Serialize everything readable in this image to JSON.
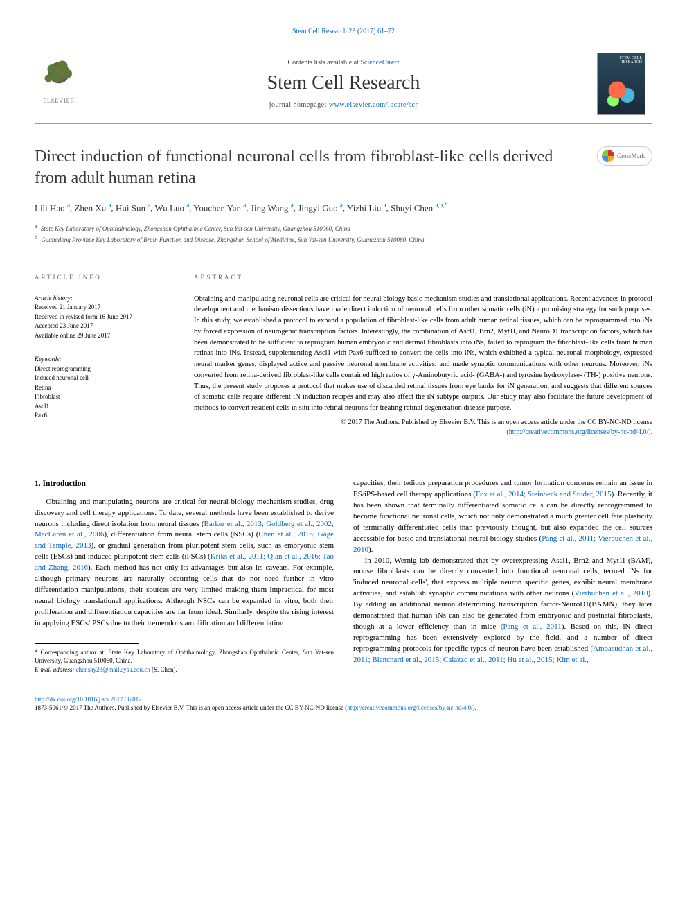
{
  "top_citation": "Stem Cell Research 23 (2017) 61–72",
  "header": {
    "contents_pre": "Contents lists available at ",
    "contents_link": "ScienceDirect",
    "journal": "Stem Cell Research",
    "homepage_pre": "journal homepage: ",
    "homepage_url": "www.elsevier.com/locate/scr",
    "publisher": "ELSEVIER",
    "cover_label": "STEM CELL RESEARCH"
  },
  "crossmark": "CrossMark",
  "title": "Direct induction of functional neuronal cells from fibroblast-like cells derived from adult human retina",
  "authors_html": "Lili Hao <sup>a</sup>, Zhen Xu <sup>a</sup>, Hui Sun <sup>a</sup>, Wu Luo <sup>a</sup>, Youchen Yan <sup>a</sup>, Jing Wang <sup>a</sup>, Jingyi Guo <sup>a</sup>, Yizhi Liu <sup>a</sup>, Shuyi Chen <sup>a,b,*</sup>",
  "affiliations": {
    "a": "State Key Laboratory of Ophthalmology, Zhongshan Ophthalmic Center, Sun Yat-sen University, Guangzhou 510060, China",
    "b": "Guangdong Province Key Laboratory of Brain Function and Disease, Zhongshan School of Medicine, Sun Yat-sen University, Guangzhou 510080, China"
  },
  "article_info": {
    "heading": "ARTICLE INFO",
    "history_label": "Article history:",
    "received": "Received 21 January 2017",
    "revised": "Received in revised form 16 June 2017",
    "accepted": "Accepted 23 June 2017",
    "online": "Available online 29 June 2017",
    "keywords_label": "Keywords:",
    "keywords": [
      "Direct reprogramming",
      "Induced neuronal cell",
      "Retina",
      "Fibroblast",
      "Ascl1",
      "Pax6"
    ]
  },
  "abstract": {
    "heading": "ABSTRACT",
    "text": "Obtaining and manipulating neuronal cells are critical for neural biology basic mechanism studies and translational applications. Recent advances in protocol development and mechanism dissections have made direct induction of neuronal cells from other somatic cells (iN) a promising strategy for such purposes. In this study, we established a protocol to expand a population of fibroblast-like cells from adult human retinal tissues, which can be reprogrammed into iNs by forced expression of neurogenic transcription factors. Interestingly, the combination of Ascl1, Brn2, Myt1l, and NeuroD1 transcription factors, which has been demonstrated to be sufficient to reprogram human embryonic and dermal fibroblasts into iNs, failed to reprogram the fibroblast-like cells from human retinas into iNs. Instead, supplementing Ascl1 with Pax6 sufficed to convert the cells into iNs, which exhibited a typical neuronal morphology, expressed neural marker genes, displayed active and passive neuronal membrane activities, and made synaptic communications with other neurons. Moreover, iNs converted from retina-derived fibroblast-like cells contained high ratios of γ-Aminobutyric acid- (GABA-) and tyrosine hydroxylase- (TH-) positive neurons. Thus, the present study proposes a protocol that makes use of discarded retinal tissues from eye banks for iN generation, and suggests that different sources of somatic cells require different iN induction recipes and may also affect the iN subtype outputs. Our study may also facilitate the future development of methods to convert resident cells in situ into retinal neurons for treating retinal degeneration disease purpose.",
    "copyright": "© 2017 The Authors. Published by Elsevier B.V. This is an open access article under the CC BY-NC-ND license",
    "license_url": "(http://creativecommons.org/licenses/by-nc-nd/4.0/)."
  },
  "body": {
    "section1_heading": "1. Introduction",
    "p1_a": "Obtaining and manipulating neurons are critical for neural biology mechanism studies, drug discovery and cell therapy applications. To date, several methods have been established to derive neurons including direct isolation from neural tissues (",
    "p1_ref1": "Barker et al., 2013; Goldberg et al., 2002; MacLaren et al., 2006",
    "p1_b": "), differentiation from neural stem cells (NSCs) (",
    "p1_ref2": "Chen et al., 2016; Gage and Temple, 2013",
    "p1_c": "), or gradual generation from pluripotent stem cells, such as embryonic stem cells (ESCs) and induced pluripotent stem cells (iPSCs) (",
    "p1_ref3": "Kriks et al., 2011; Qian et al., 2016; Tao and Zhang, 2016",
    "p1_d": "). Each method has not only its advantages but also its caveats. For example, although primary neurons are naturally occurring cells that do not need further in vitro differentiation manipulations, their sources are very limited making them impractical for most neural biology translational applications. Although NSCs can be expanded in vitro, both their proliferation and differentiation capacities are far from ideal. Similarly, despite the rising interest in applying ESCs/iPSCs due to their tremendous amplification and differentiation",
    "p2_a": "capacities, their tedious preparation procedures and tumor formation concerns remain an issue in ES/iPS-based cell therapy applications (",
    "p2_ref1": "Fox et al., 2014; Steinbeck and Studer, 2015",
    "p2_b": "). Recently, it has been shown that terminally differentiated somatic cells can be directly reprogrammed to become functional neuronal cells, which not only demonstrated a much greater cell fate plasticity of terminally differentiated cells than previously thought, but also expanded the cell sources accessible for basic and translational neural biology studies (",
    "p2_ref2": "Pang et al., 2011; Vierbuchen et al., 2010",
    "p2_c": ").",
    "p3_a": "In 2010, Wernig lab demonstrated that by overexpressing Ascl1, Brn2 and Myt1l (BAM), mouse fibroblasts can be directly converted into functional neuronal cells, termed iNs for 'induced neuronal cells', that express multiple neuron specific genes, exhibit neural membrane activities, and establish synaptic communications with other neurons (",
    "p3_ref1": "Vierbuchen et al., 2010",
    "p3_b": "). By adding an additional neuron determining transcription factor-NeuroD1(BAMN), they later demonstrated that human iNs can also be generated from embryonic and postnatal fibroblasts, though at a lower efficiency than in mice (",
    "p3_ref2": "Pang et al., 2011",
    "p3_c": "). Based on this, iN direct reprogramming has been extensively explored by the field, and a number of direct reprogramming protocols for specific types of neuron have been established (",
    "p3_ref3": "Ambasudhan et al., 2011; Blanchard et al., 2015; Caiazzo et al., 2011; Hu et al., 2015; Kim et al.,"
  },
  "footnote": {
    "corr": "* Corresponding author at: State Key Laboratory of Ophthalmology, Zhongshan Ophthalmic Center, Sun Yat-sen University, Guangzhou 510060, China.",
    "email_label": "E-mail address: ",
    "email": "chenshy23@mail.sysu.edu.cn",
    "email_suffix": " (S. Chen)."
  },
  "footer": {
    "doi": "http://dx.doi.org/10.1016/j.scr.2017.06.012",
    "issn_line": "1873-5061/© 2017 The Authors. Published by Elsevier B.V. This is an open access article under the CC BY-NC-ND license (",
    "license": "http://creativecommons.org/licenses/by-nc-nd/4.0/",
    "close": ")."
  },
  "colors": {
    "link": "#0066cc",
    "text": "#000000",
    "muted": "#666666",
    "rule": "#999999"
  }
}
